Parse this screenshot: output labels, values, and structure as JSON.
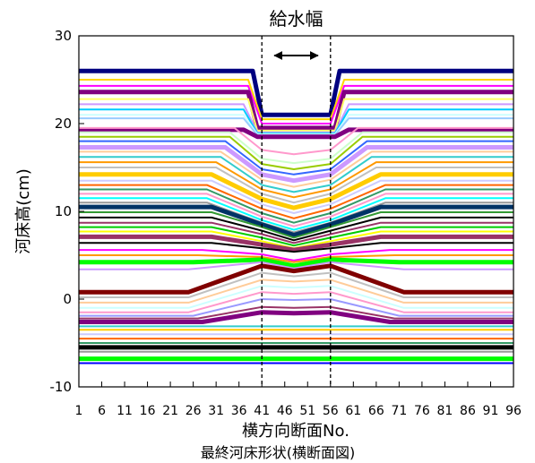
{
  "chart_data": {
    "type": "line",
    "title": "",
    "caption": "最終河床形状(横断面図)",
    "xlabel": "横方向断面No.",
    "ylabel": "河床高(cm)",
    "xlim": [
      1,
      96
    ],
    "ylim": [
      -10,
      30
    ],
    "xticks": [
      1,
      6,
      11,
      16,
      21,
      26,
      31,
      36,
      41,
      46,
      51,
      56,
      61,
      66,
      71,
      76,
      81,
      86,
      91,
      96
    ],
    "yticks": [
      -10,
      0,
      10,
      20,
      30
    ],
    "grid": false,
    "annotation": {
      "label": "給水幅",
      "x_left": 41,
      "x_right": 56
    },
    "series": [
      {
        "color": "#000080",
        "weight": "heavy",
        "x": [
          1,
          39,
          41,
          56,
          58,
          96
        ],
        "y": [
          26,
          26,
          21,
          21,
          26,
          26
        ]
      },
      {
        "color": "#FFD700",
        "weight": "normal",
        "x": [
          1,
          38,
          41,
          56,
          59,
          96
        ],
        "y": [
          25,
          25,
          20.5,
          20.5,
          25,
          25
        ]
      },
      {
        "color": "#FF00FF",
        "weight": "normal",
        "x": [
          1,
          38,
          41,
          56,
          59,
          96
        ],
        "y": [
          24.3,
          24.3,
          20,
          20,
          24.3,
          24.3
        ]
      },
      {
        "color": "#800080",
        "weight": "heavy",
        "x": [
          1,
          38,
          40,
          57,
          59,
          96
        ],
        "y": [
          23.6,
          23.6,
          19.5,
          19.5,
          23.6,
          23.6
        ]
      },
      {
        "color": "#FFFF66",
        "weight": "normal",
        "x": [
          1,
          38,
          40,
          57,
          59,
          96
        ],
        "y": [
          22.8,
          22.8,
          19.2,
          19.2,
          22.8,
          22.8
        ]
      },
      {
        "color": "#CC99FF",
        "weight": "normal",
        "x": [
          1,
          37,
          40,
          57,
          60,
          96
        ],
        "y": [
          22.2,
          22.2,
          19,
          19,
          22.2,
          22.2
        ]
      },
      {
        "color": "#00CCFF",
        "weight": "normal",
        "x": [
          1,
          37,
          40,
          57,
          60,
          96
        ],
        "y": [
          21.6,
          21.6,
          18.9,
          18.9,
          21.6,
          21.6
        ]
      },
      {
        "color": "#CCFFFF",
        "weight": "normal",
        "x": [
          1,
          37,
          40,
          57,
          60,
          96
        ],
        "y": [
          21,
          21,
          18.8,
          18.8,
          21,
          21
        ]
      },
      {
        "color": "#99CCFF",
        "weight": "normal",
        "x": [
          1,
          37,
          40,
          57,
          60,
          96
        ],
        "y": [
          20.6,
          20.6,
          18.7,
          18.7,
          20.6,
          20.6
        ]
      },
      {
        "color": "#800080",
        "weight": "heavy",
        "x": [
          1,
          37,
          40,
          57,
          60,
          96
        ],
        "y": [
          19.3,
          19.3,
          18.5,
          18.5,
          19.3,
          19.3
        ]
      },
      {
        "color": "#FF99CC",
        "weight": "normal",
        "x": [
          1,
          35,
          41,
          48,
          56,
          62,
          96
        ],
        "y": [
          19.5,
          19.5,
          17,
          16.5,
          17,
          19.5,
          19.5
        ]
      },
      {
        "color": "#CCFFCC",
        "weight": "normal",
        "x": [
          1,
          34,
          41,
          48,
          56,
          63,
          96
        ],
        "y": [
          19,
          19,
          16,
          15.5,
          16,
          19,
          19
        ]
      },
      {
        "color": "#99CC00",
        "weight": "normal",
        "x": [
          1,
          34,
          41,
          48,
          56,
          63,
          96
        ],
        "y": [
          18.5,
          18.5,
          15.4,
          14.8,
          15.4,
          18.5,
          18.5
        ]
      },
      {
        "color": "#3366FF",
        "weight": "normal",
        "x": [
          1,
          33,
          41,
          48,
          56,
          64,
          96
        ],
        "y": [
          18,
          18,
          14.8,
          14.2,
          14.8,
          18,
          18
        ]
      },
      {
        "color": "#CC99FF",
        "weight": "heavy",
        "x": [
          1,
          33,
          41,
          48,
          56,
          64,
          96
        ],
        "y": [
          17.3,
          17.3,
          14.2,
          13.5,
          14.2,
          17.3,
          17.3
        ]
      },
      {
        "color": "#FFCC99",
        "weight": "normal",
        "x": [
          1,
          32,
          41,
          48,
          56,
          65,
          96
        ],
        "y": [
          16.8,
          16.8,
          13.6,
          12.8,
          13.6,
          16.8,
          16.8
        ]
      },
      {
        "color": "#33CCCC",
        "weight": "normal",
        "x": [
          1,
          32,
          41,
          48,
          56,
          65,
          96
        ],
        "y": [
          16.2,
          16.2,
          13,
          12.2,
          13,
          16.2,
          16.2
        ]
      },
      {
        "color": "#FF9900",
        "weight": "normal",
        "x": [
          1,
          31,
          41,
          48,
          56,
          66,
          96
        ],
        "y": [
          15.6,
          15.6,
          12.5,
          11.6,
          12.5,
          15.6,
          15.6
        ]
      },
      {
        "color": "#C0C0C0",
        "weight": "normal",
        "x": [
          1,
          31,
          41,
          48,
          56,
          66,
          96
        ],
        "y": [
          15,
          15,
          12,
          11,
          12,
          15,
          15
        ]
      },
      {
        "color": "#FFCC00",
        "weight": "heavy",
        "x": [
          1,
          30,
          41,
          48,
          56,
          67,
          96
        ],
        "y": [
          14.2,
          14.2,
          11.4,
          10.4,
          11.4,
          14.2,
          14.2
        ]
      },
      {
        "color": "#CCCCFF",
        "weight": "normal",
        "x": [
          1,
          30,
          41,
          48,
          56,
          67,
          96
        ],
        "y": [
          13.5,
          13.5,
          10.8,
          9.8,
          10.8,
          13.5,
          13.5
        ]
      },
      {
        "color": "#FF6600",
        "weight": "normal",
        "x": [
          1,
          29,
          41,
          48,
          56,
          68,
          96
        ],
        "y": [
          13,
          13,
          10.3,
          9.2,
          10.3,
          13,
          13
        ]
      },
      {
        "color": "#339966",
        "weight": "normal",
        "x": [
          1,
          29,
          41,
          48,
          56,
          68,
          96
        ],
        "y": [
          12.5,
          12.5,
          9.8,
          8.7,
          9.8,
          12.5,
          12.5
        ]
      },
      {
        "color": "#FF99CC",
        "weight": "normal",
        "x": [
          1,
          29,
          41,
          48,
          56,
          68,
          96
        ],
        "y": [
          12,
          12,
          9.4,
          8.3,
          9.4,
          12,
          12
        ]
      },
      {
        "color": "#00FFFF",
        "weight": "normal",
        "x": [
          1,
          29,
          41,
          48,
          56,
          68,
          96
        ],
        "y": [
          11.5,
          11.5,
          9,
          7.9,
          9,
          11.5,
          11.5
        ]
      },
      {
        "color": "#999999",
        "weight": "normal",
        "x": [
          1,
          29,
          41,
          48,
          56,
          68,
          96
        ],
        "y": [
          11,
          11,
          8.7,
          7.6,
          8.7,
          11,
          11
        ]
      },
      {
        "color": "#003366",
        "weight": "heavy",
        "x": [
          1,
          30,
          41,
          48,
          56,
          67,
          96
        ],
        "y": [
          10.5,
          10.5,
          8.5,
          7.3,
          8.5,
          10.5,
          10.5
        ]
      },
      {
        "color": "#339933",
        "weight": "normal",
        "x": [
          1,
          30,
          41,
          48,
          56,
          67,
          96
        ],
        "y": [
          9.9,
          9.9,
          8.2,
          7,
          8.2,
          9.9,
          9.9
        ]
      },
      {
        "color": "#000000",
        "weight": "normal",
        "x": [
          1,
          30,
          41,
          48,
          56,
          67,
          96
        ],
        "y": [
          9.3,
          9.3,
          7.8,
          6.7,
          7.8,
          9.3,
          9.3
        ]
      },
      {
        "color": "#993366",
        "weight": "normal",
        "x": [
          1,
          30,
          41,
          48,
          56,
          67,
          96
        ],
        "y": [
          8.7,
          8.7,
          7.4,
          6.4,
          7.4,
          8.7,
          8.7
        ]
      },
      {
        "color": "#00CC00",
        "weight": "normal",
        "x": [
          1,
          30,
          41,
          48,
          56,
          67,
          96
        ],
        "y": [
          8.2,
          8.2,
          7,
          6.1,
          7,
          8.2,
          8.2
        ]
      },
      {
        "color": "#FFFF00",
        "weight": "normal",
        "x": [
          1,
          30,
          41,
          48,
          56,
          67,
          96
        ],
        "y": [
          7.7,
          7.7,
          6.6,
          5.8,
          6.6,
          7.7,
          7.7
        ]
      },
      {
        "color": "#993366",
        "weight": "heavy",
        "x": [
          1,
          30,
          41,
          48,
          56,
          67,
          96
        ],
        "y": [
          7.1,
          7.1,
          6.2,
          5.6,
          6.2,
          7.1,
          7.1
        ]
      },
      {
        "color": "#000000",
        "weight": "normal",
        "x": [
          1,
          30,
          41,
          48,
          56,
          67,
          96
        ],
        "y": [
          6.4,
          6.4,
          5.8,
          5.4,
          5.8,
          6.4,
          6.4
        ]
      },
      {
        "color": "#FF00FF",
        "weight": "normal",
        "x": [
          1,
          28,
          41,
          48,
          56,
          69,
          96
        ],
        "y": [
          5.6,
          5.6,
          5.1,
          4.4,
          5.1,
          5.6,
          5.6
        ]
      },
      {
        "color": "#FF9900",
        "weight": "normal",
        "x": [
          1,
          27,
          41,
          48,
          56,
          70,
          96
        ],
        "y": [
          5,
          5,
          4.8,
          4.2,
          4.8,
          5,
          5
        ]
      },
      {
        "color": "#00FF00",
        "weight": "heavy",
        "x": [
          1,
          26,
          41,
          48,
          56,
          71,
          96
        ],
        "y": [
          4.2,
          4.2,
          4.5,
          3.8,
          4.5,
          4.2,
          4.2
        ]
      },
      {
        "color": "#CC99FF",
        "weight": "normal",
        "x": [
          1,
          25,
          41,
          48,
          56,
          72,
          96
        ],
        "y": [
          3.4,
          3.4,
          4.2,
          3.5,
          4.2,
          3.4,
          3.4
        ]
      },
      {
        "color": "#800000",
        "weight": "heavy",
        "x": [
          1,
          25,
          41,
          48,
          56,
          72,
          96
        ],
        "y": [
          0.8,
          0.8,
          3.8,
          3.2,
          3.8,
          0.8,
          0.8
        ]
      },
      {
        "color": "#C0C0C0",
        "weight": "normal",
        "x": [
          1,
          25,
          41,
          48,
          56,
          72,
          96
        ],
        "y": [
          0.2,
          0.2,
          3,
          2.6,
          3,
          0.2,
          0.2
        ]
      },
      {
        "color": "#FFCC99",
        "weight": "normal",
        "x": [
          1,
          25,
          41,
          48,
          56,
          72,
          96
        ],
        "y": [
          -0.4,
          -0.4,
          2.2,
          2,
          2.2,
          -0.4,
          -0.4
        ]
      },
      {
        "color": "#CCFFFF",
        "weight": "normal",
        "x": [
          1,
          25,
          41,
          48,
          56,
          72,
          96
        ],
        "y": [
          -1,
          -1,
          1.5,
          1.3,
          1.5,
          -1,
          -1
        ]
      },
      {
        "color": "#FF99CC",
        "weight": "normal",
        "x": [
          1,
          25,
          41,
          48,
          56,
          72,
          96
        ],
        "y": [
          -1.5,
          -1.5,
          0.8,
          0.6,
          0.8,
          -1.5,
          -1.5
        ]
      },
      {
        "color": "#9999FF",
        "weight": "normal",
        "x": [
          1,
          26,
          41,
          48,
          56,
          71,
          96
        ],
        "y": [
          -1.9,
          -1.9,
          0,
          -0.1,
          0,
          -1.9,
          -1.9
        ]
      },
      {
        "color": "#993366",
        "weight": "normal",
        "x": [
          1,
          27,
          41,
          48,
          56,
          70,
          96
        ],
        "y": [
          -2.2,
          -2.2,
          -0.9,
          -1,
          -0.9,
          -2.2,
          -2.2
        ]
      },
      {
        "color": "#800080",
        "weight": "heavy",
        "x": [
          1,
          28,
          41,
          48,
          56,
          69,
          96
        ],
        "y": [
          -2.6,
          -2.6,
          -1.5,
          -1.6,
          -1.5,
          -2.6,
          -2.6
        ]
      },
      {
        "color": "#33CCCC",
        "weight": "normal",
        "x": [
          1,
          96
        ],
        "y": [
          -3.1,
          -3.1
        ]
      },
      {
        "color": "#FFCC00",
        "weight": "normal",
        "x": [
          1,
          96
        ],
        "y": [
          -3.5,
          -3.5
        ]
      },
      {
        "color": "#CCCCFF",
        "weight": "normal",
        "x": [
          1,
          96
        ],
        "y": [
          -4,
          -4
        ]
      },
      {
        "color": "#FF6600",
        "weight": "normal",
        "x": [
          1,
          96
        ],
        "y": [
          -4.5,
          -4.5
        ]
      },
      {
        "color": "#339966",
        "weight": "normal",
        "x": [
          1,
          96
        ],
        "y": [
          -5,
          -5
        ]
      },
      {
        "color": "#000000",
        "weight": "heavy",
        "x": [
          1,
          96
        ],
        "y": [
          -5.5,
          -5.5
        ]
      },
      {
        "color": "#999999",
        "weight": "normal",
        "x": [
          1,
          96
        ],
        "y": [
          -6,
          -6
        ]
      },
      {
        "color": "#00FF00",
        "weight": "heavy",
        "x": [
          1,
          96
        ],
        "y": [
          -6.8,
          -6.8
        ]
      },
      {
        "color": "#0000FF",
        "weight": "normal",
        "x": [
          1,
          96
        ],
        "y": [
          -7.3,
          -7.3
        ]
      }
    ]
  }
}
